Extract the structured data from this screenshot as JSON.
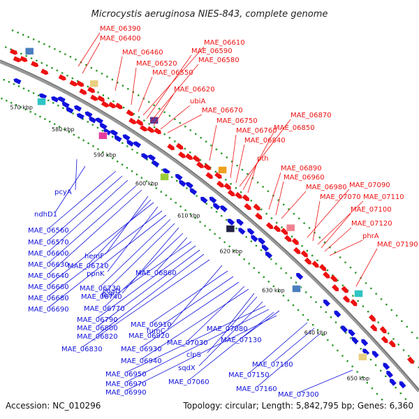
{
  "title": "Microcystis aeruginosa NIES-843, complete genome",
  "footer": {
    "accession": "Accession: NC_010296",
    "topology": "Topology: circular; Length: 5,842,795 bp; Genes: 6,360"
  },
  "colors": {
    "forward": "#ee1111",
    "reverse": "#1111dd",
    "backbone": "#888888",
    "dots": "#2a9a2a"
  },
  "ticks": [
    "570 kbp",
    "580 kbp",
    "590 kbp",
    "600 kbp",
    "610 kbp",
    "620 kbp",
    "630 kbp",
    "640 kbp",
    "650 kbp"
  ],
  "forward_labels": [
    {
      "label": "MAE_06390",
      "target": [
        112,
        95
      ]
    },
    {
      "label": "MAE_06400",
      "target": [
        118,
        105
      ]
    },
    {
      "label": "MAE_06460",
      "target": [
        165,
        130
      ]
    },
    {
      "label": "MAE_06520",
      "target": [
        188,
        150
      ]
    },
    {
      "label": "MAE_06550",
      "target": [
        198,
        160
      ]
    },
    {
      "label": "MAE_06610",
      "target": [
        205,
        165
      ]
    },
    {
      "label": "MAE_06590",
      "target": [
        210,
        170
      ]
    },
    {
      "label": "MAE_06580",
      "target": [
        215,
        175
      ]
    },
    {
      "label": "MAE_06620",
      "target": [
        220,
        180
      ]
    },
    {
      "label": "ubiA",
      "target": [
        230,
        185
      ]
    },
    {
      "label": "MAE_06670",
      "target": [
        240,
        190
      ]
    },
    {
      "label": "MAE_06750",
      "target": [
        300,
        230
      ]
    },
    {
      "label": "MAE_06760",
      "target": [
        330,
        255
      ]
    },
    {
      "label": "MAE_06840",
      "target": [
        338,
        262
      ]
    },
    {
      "label": "MAE_06870",
      "target": [
        343,
        267
      ]
    },
    {
      "label": "MAE_06850",
      "target": [
        348,
        272
      ]
    },
    {
      "label": "pth",
      "target": [
        355,
        276
      ]
    },
    {
      "label": "MAE_06890",
      "target": [
        385,
        300
      ]
    },
    {
      "label": "MAE_06960",
      "target": [
        395,
        308
      ]
    },
    {
      "label": "MAE_06980",
      "target": [
        403,
        313
      ]
    },
    {
      "label": "MAE_07090",
      "target": [
        440,
        340
      ]
    },
    {
      "label": "MAE_07070",
      "target": [
        448,
        345
      ]
    },
    {
      "label": "MAE_07110",
      "target": [
        455,
        350
      ]
    },
    {
      "label": "MAE_07100",
      "target": [
        460,
        355
      ]
    },
    {
      "label": "MAE_07120",
      "target": [
        465,
        360
      ]
    },
    {
      "label": "phrA",
      "target": [
        472,
        366
      ]
    },
    {
      "label": "MAE_07190",
      "target": [
        510,
        410
      ]
    }
  ],
  "reverse_labels": [
    {
      "label": "pcyA",
      "target": [
        110,
        228
      ]
    },
    {
      "label": "ndhD1",
      "target": [
        122,
        238
      ]
    },
    {
      "label": "MAE_06560",
      "target": [
        166,
        245
      ]
    },
    {
      "label": "MAE_06570",
      "target": [
        175,
        252
      ]
    },
    {
      "label": "MAE_06600",
      "target": [
        183,
        258
      ]
    },
    {
      "label": "MAE_06630",
      "target": [
        195,
        266
      ]
    },
    {
      "label": "MAE_06640",
      "target": [
        203,
        272
      ]
    },
    {
      "label": "hemF",
      "target": [
        212,
        281
      ]
    },
    {
      "label": "MAE_06710",
      "target": [
        216,
        286
      ]
    },
    {
      "label": "MAE_06660",
      "target": [
        220,
        290
      ]
    },
    {
      "label": "ppnK",
      "target": [
        226,
        296
      ]
    },
    {
      "label": "MAE_06680",
      "target": [
        232,
        302
      ]
    },
    {
      "label": "MAE_06690",
      "target": [
        238,
        308
      ]
    },
    {
      "label": "MAE_06730",
      "target": [
        244,
        314
      ]
    },
    {
      "label": "MAE_06740",
      "target": [
        250,
        320
      ]
    },
    {
      "label": "folP",
      "target": [
        256,
        326
      ]
    },
    {
      "label": "MAE_06860",
      "target": [
        268,
        340
      ]
    },
    {
      "label": "MAE_06770",
      "target": [
        262,
        334
      ]
    },
    {
      "label": "coaD",
      "target": [
        274,
        346
      ]
    },
    {
      "label": "MAE_06790",
      "target": [
        280,
        352
      ]
    },
    {
      "label": "MAE_06800",
      "target": [
        286,
        358
      ]
    },
    {
      "label": "MAE_06820",
      "target": [
        292,
        364
      ]
    },
    {
      "label": "MAE_06830",
      "target": [
        300,
        372
      ]
    },
    {
      "label": "fumC",
      "target": [
        318,
        380
      ]
    },
    {
      "label": "MAE_06910",
      "target": [
        326,
        388
      ]
    },
    {
      "label": "MAE_06920",
      "target": [
        334,
        396
      ]
    },
    {
      "label": "MAE_06930",
      "target": [
        342,
        404
      ]
    },
    {
      "label": "MAE_07030",
      "target": [
        350,
        410
      ]
    },
    {
      "label": "MAE_06940",
      "target": [
        356,
        414
      ]
    },
    {
      "label": "MAE_07080",
      "target": [
        364,
        420
      ]
    },
    {
      "label": "clpS",
      "target": [
        368,
        425
      ]
    },
    {
      "label": "MAE_07130",
      "target": [
        400,
        445
      ]
    },
    {
      "label": "sqdX",
      "target": [
        376,
        432
      ]
    },
    {
      "label": "MAE_06950",
      "target": [
        380,
        438
      ]
    },
    {
      "label": "MAE_06970",
      "target": [
        385,
        443
      ]
    },
    {
      "label": "MAE_07060",
      "target": [
        392,
        447
      ]
    },
    {
      "label": "MAE_06990",
      "target": [
        396,
        452
      ]
    },
    {
      "label": "MAE_07150",
      "target": [
        440,
        462
      ]
    },
    {
      "label": "MAE_07180",
      "target": [
        450,
        470
      ]
    },
    {
      "label": "MAE_07160",
      "target": [
        458,
        478
      ]
    },
    {
      "label": "MAE_07300",
      "target": [
        505,
        530
      ]
    }
  ]
}
